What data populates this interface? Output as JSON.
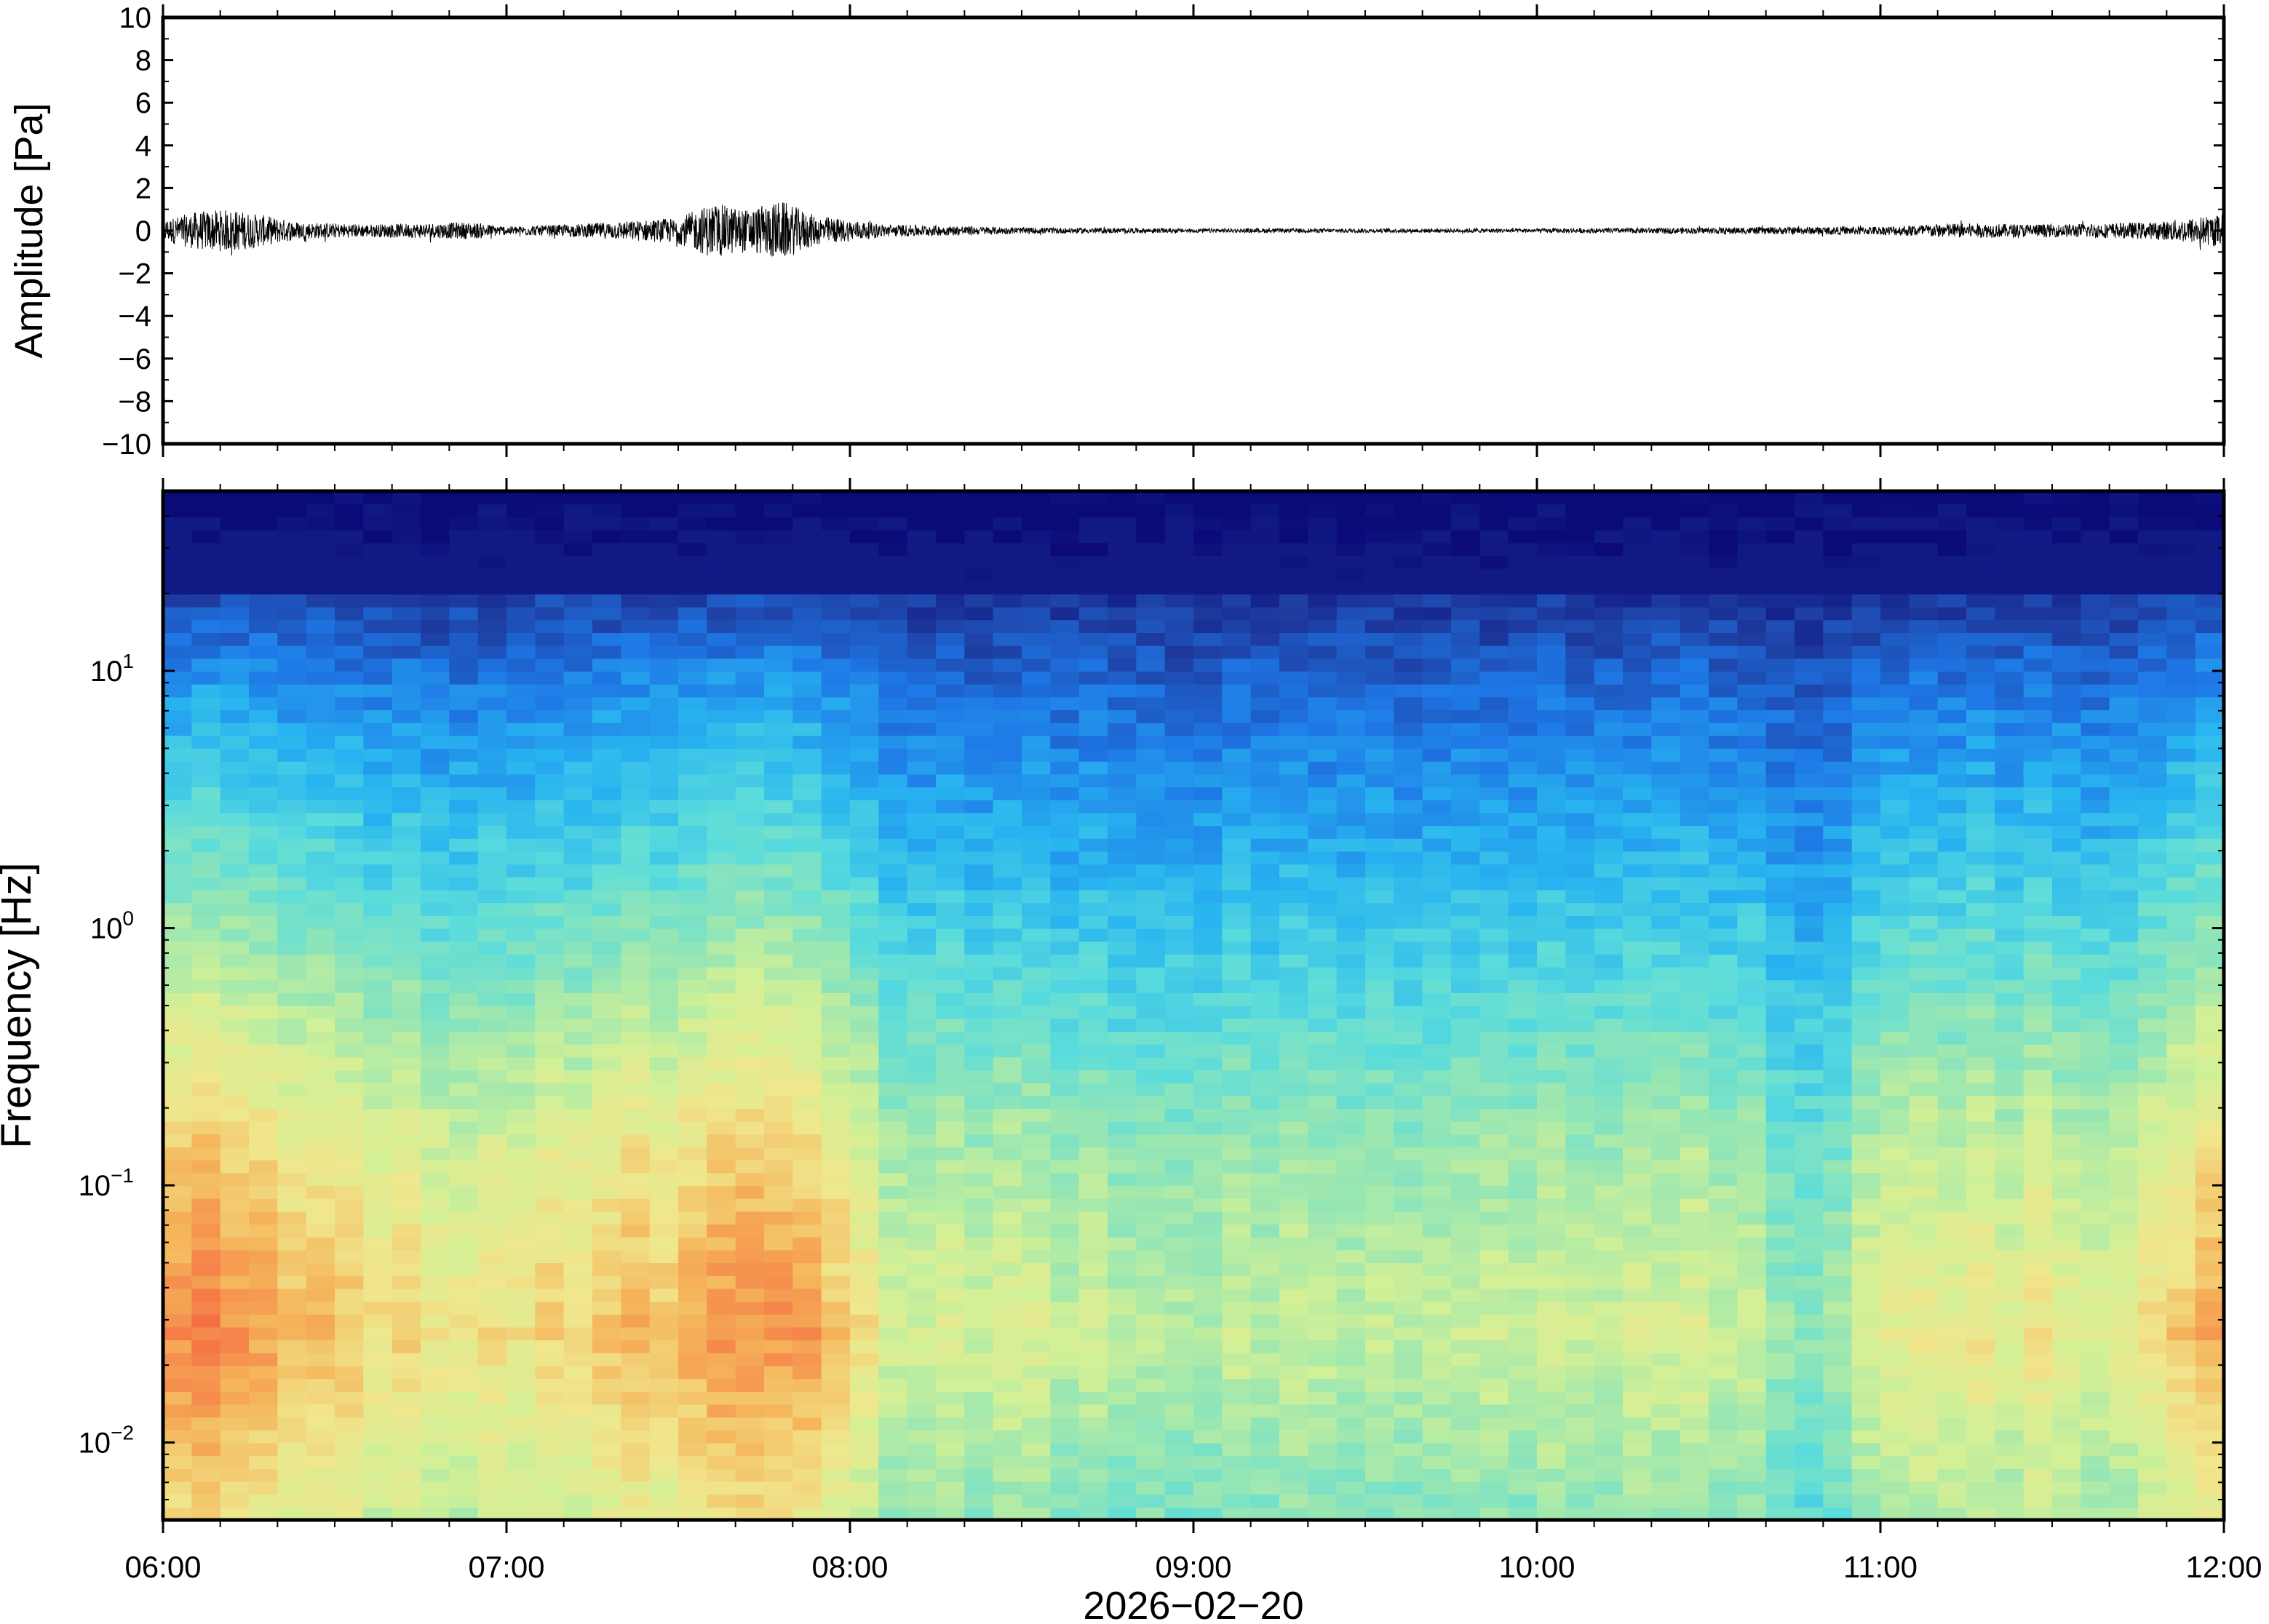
{
  "chart_data": [
    {
      "type": "line",
      "ylabel": "Amplitude [Pa]",
      "ylim": [
        -10,
        10
      ],
      "y_ticks": [
        "10",
        "8",
        "6",
        "4",
        "2",
        "0",
        "−2",
        "−4",
        "−6",
        "−8",
        "−10"
      ],
      "y_tick_values": [
        10,
        8,
        6,
        4,
        2,
        0,
        -2,
        -4,
        -6,
        -8,
        -10
      ],
      "xlim": [
        "06:00",
        "12:00"
      ],
      "noise_envelope": {
        "x_hours": [
          6.0,
          6.1,
          6.2,
          6.3,
          6.4,
          6.6,
          6.9,
          7.0,
          7.2,
          7.4,
          7.5,
          7.6,
          7.7,
          7.8,
          7.9,
          8.1,
          8.5,
          9.0,
          10.0,
          11.0,
          11.2,
          11.5,
          11.8,
          11.9,
          12.0
        ],
        "amplitude_pa": [
          0.5,
          0.9,
          1.0,
          0.7,
          0.4,
          0.3,
          0.4,
          0.2,
          0.3,
          0.5,
          0.6,
          1.3,
          1.0,
          1.4,
          0.7,
          0.3,
          0.15,
          0.1,
          0.1,
          0.2,
          0.35,
          0.3,
          0.4,
          0.6,
          0.8
        ]
      }
    },
    {
      "type": "heatmap",
      "ylabel": "Frequency [Hz]",
      "xlabel": "2026−02−20",
      "y_scale": "log",
      "ylim": [
        0.005,
        50
      ],
      "y_ticks": [
        {
          "base": "10",
          "exp": "1",
          "value": 10
        },
        {
          "base": "10",
          "exp": "0",
          "value": 1
        },
        {
          "base": "10",
          "exp": "−1",
          "value": 0.1
        },
        {
          "base": "10",
          "exp": "−2",
          "value": 0.01
        }
      ],
      "x_ticks": [
        "06:00",
        "07:00",
        "08:00",
        "09:00",
        "10:00",
        "11:00",
        "12:00"
      ],
      "x_tick_hours": [
        6,
        7,
        8,
        9,
        10,
        11,
        12
      ],
      "colormap": [
        "#0a0a78",
        "#1e3ca0",
        "#1e78e6",
        "#28b4f0",
        "#5adcdc",
        "#96e6b4",
        "#d2f096",
        "#f0e68c",
        "#f5b45a",
        "#f57846",
        "#eb4646"
      ],
      "energy_by_hour": {
        "x_hours": [
          6.0,
          6.2,
          6.4,
          6.6,
          6.8,
          7.0,
          7.2,
          7.3,
          7.5,
          7.6,
          7.8,
          7.9,
          8.1,
          8.3,
          8.6,
          8.9,
          9.2,
          9.5,
          10.0,
          10.5,
          10.7,
          10.8,
          10.9,
          11.0,
          11.2,
          11.5,
          11.7,
          11.85,
          12.0
        ],
        "relative_level": [
          1.0,
          1.0,
          0.8,
          0.75,
          0.7,
          0.65,
          0.75,
          0.85,
          0.8,
          1.0,
          1.0,
          0.95,
          0.55,
          0.5,
          0.45,
          0.4,
          0.4,
          0.45,
          0.45,
          0.5,
          0.35,
          0.3,
          0.4,
          0.55,
          0.6,
          0.6,
          0.55,
          0.8,
          0.95
        ]
      }
    }
  ]
}
